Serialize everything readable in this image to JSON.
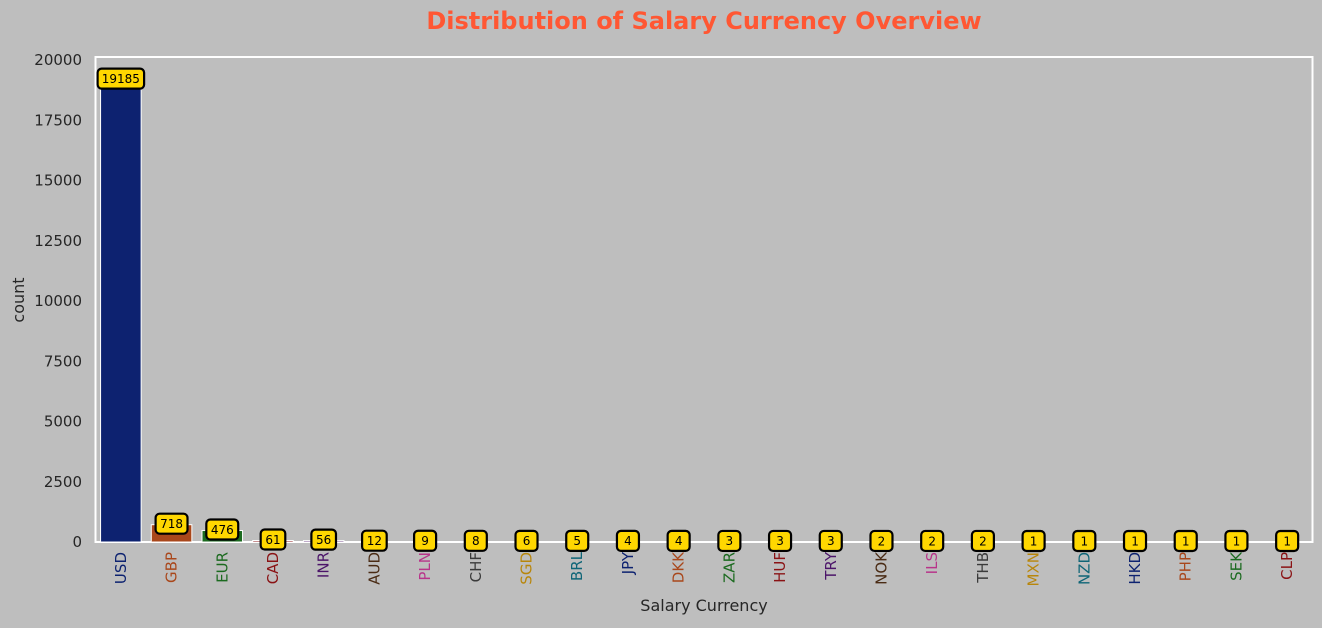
{
  "chart_data": {
    "type": "bar",
    "title": "Distribution of Salary Currency Overview",
    "xlabel": "Salary Currency",
    "ylabel": "count",
    "ylim": [
      0,
      20000
    ],
    "yticks": [
      0,
      2500,
      5000,
      7500,
      10000,
      12500,
      15000,
      17500,
      20000
    ],
    "grid": false,
    "categories": [
      "USD",
      "GBP",
      "EUR",
      "CAD",
      "INR",
      "AUD",
      "PLN",
      "CHF",
      "SGD",
      "BRL",
      "JPY",
      "DKK",
      "ZAR",
      "HUF",
      "TRY",
      "NOK",
      "ILS",
      "THB",
      "MXN",
      "NZD",
      "HKD",
      "PHP",
      "SEK",
      "CLP"
    ],
    "values": [
      19185,
      718,
      476,
      61,
      56,
      12,
      9,
      8,
      6,
      5,
      4,
      4,
      3,
      3,
      3,
      2,
      2,
      2,
      1,
      1,
      1,
      1,
      1,
      1
    ],
    "palette": [
      "#0d2270",
      "#a9471b",
      "#1b6a1f",
      "#8a1214",
      "#4b1469",
      "#4a2b14",
      "#b8348a",
      "#3a3a3a",
      "#b8860b",
      "#0f6577"
    ],
    "title_color": "#ff5733",
    "label_box_color": "#ffd700"
  }
}
